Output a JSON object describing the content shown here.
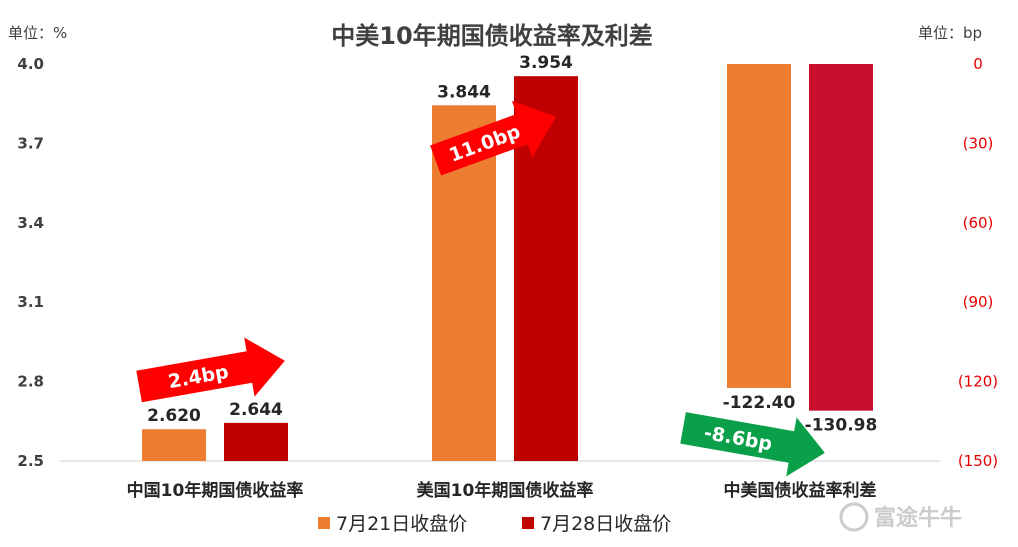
{
  "title": "中美10年期国债收益率及利差",
  "left_unit": "单位：%",
  "right_unit": "单位：bp",
  "watermark": "富途牛牛",
  "colors": {
    "orange": "#ed7d31",
    "dark_red": "#c00000",
    "crimson": "#c8102e",
    "arrow_red": "#ff0000",
    "arrow_green": "#0aa04a",
    "right_tick": "#e60000"
  },
  "annotations": [
    {
      "text": "2.4bp",
      "color": "red"
    },
    {
      "text": "11.0bp",
      "color": "red"
    },
    {
      "text": "-8.6bp",
      "color": "green"
    }
  ],
  "chart_data": {
    "type": "bar",
    "title": "中美10年期国债收益率及利差",
    "categories": [
      "中国10年期国债收益率",
      "美国10年期国债收益率",
      "中美国债收益率利差"
    ],
    "series": [
      {
        "name": "7月21日收盘价",
        "color": "#ed7d31",
        "values": [
          2.62,
          3.844,
          -122.4
        ],
        "labels": [
          "2.620",
          "3.844",
          "-122.40"
        ]
      },
      {
        "name": "7月28日收盘价",
        "color": "#c00000",
        "values": [
          2.644,
          3.954,
          -130.98
        ],
        "labels": [
          "2.644",
          "3.954",
          "-130.98"
        ]
      }
    ],
    "left_axis": {
      "unit": "%",
      "ylim": [
        2.5,
        4.0
      ],
      "ticks": [
        "4.0",
        "3.7",
        "3.4",
        "3.1",
        "2.8",
        "2.5"
      ]
    },
    "right_axis": {
      "unit": "bp",
      "ylim": [
        -150,
        0
      ],
      "ticks": [
        "0",
        "(30)",
        "(60)",
        "(90)",
        "(120)",
        "(150)"
      ]
    },
    "spread_category_axis": "right",
    "legend_position": "bottom",
    "grid": false
  }
}
